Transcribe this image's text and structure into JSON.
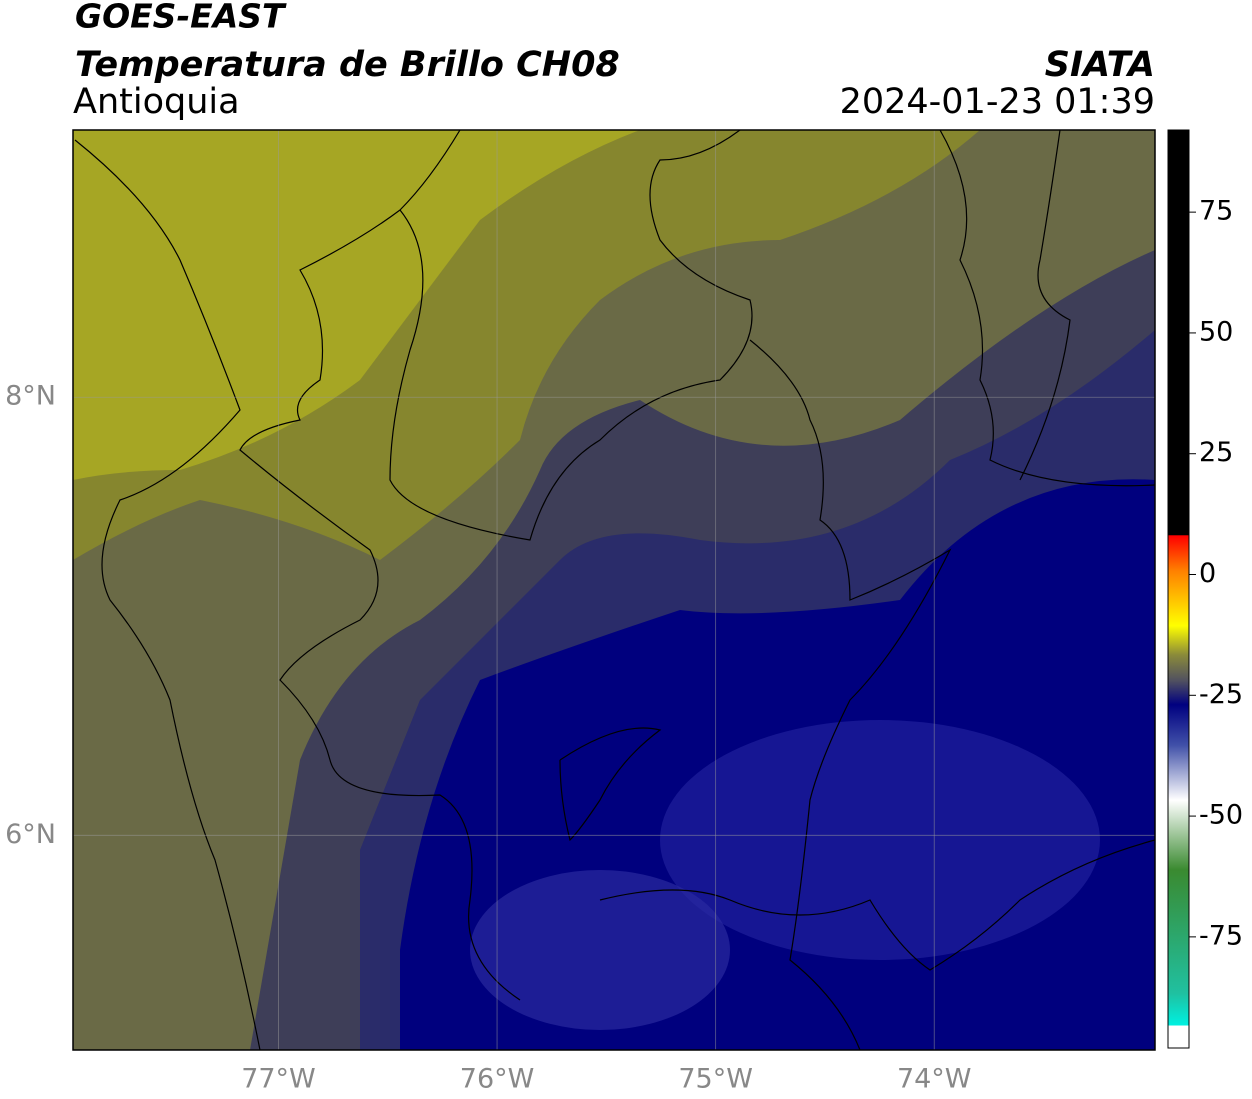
{
  "header": {
    "title": "GOES-EAST",
    "subtitle": "Temperatura de Brillo CH08",
    "region": "Antioquia",
    "source": "SIATA",
    "datetime": "2024-01-23 01:39"
  },
  "map": {
    "lon_range": [
      -77.94,
      -72.99
    ],
    "lat_range": [
      5.02,
      9.22
    ],
    "lon_ticks": [
      {
        "value": -77,
        "label": "77°W"
      },
      {
        "value": -76,
        "label": "76°W"
      },
      {
        "value": -75,
        "label": "75°W"
      },
      {
        "value": -74,
        "label": "74°W"
      }
    ],
    "lat_ticks": [
      {
        "value": 8,
        "label": "8°N"
      },
      {
        "value": 6,
        "label": "6°N"
      }
    ]
  },
  "colorbar": {
    "range": [
      -98,
      92
    ],
    "ticks": [
      75,
      50,
      25,
      0,
      -25,
      -50,
      -75
    ]
  }
}
